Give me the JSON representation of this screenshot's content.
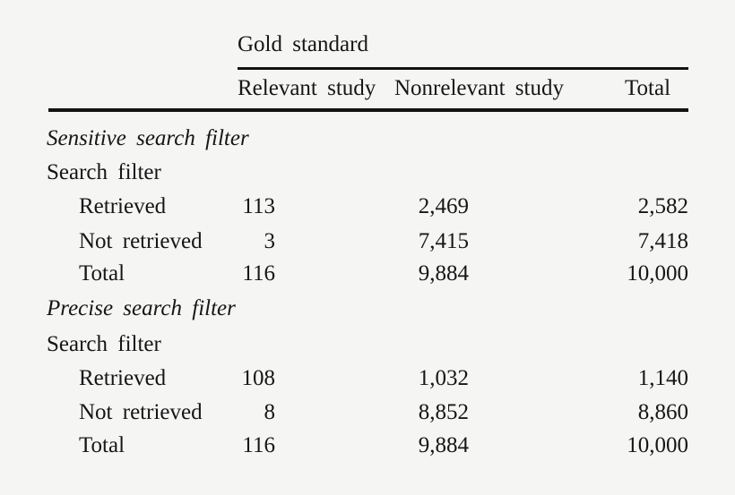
{
  "colors": {
    "background": "#f5f5f4",
    "text": "#161616",
    "rule": "#121212"
  },
  "table": {
    "spanner": "Gold standard",
    "columns": [
      "Relevant study",
      "Nonrelevant study",
      "Total"
    ],
    "sections": [
      {
        "title": "Sensitive search filter",
        "group_label": "Search filter",
        "rows": [
          {
            "label": "Retrieved",
            "relevant": "113",
            "nonrelevant": "2,469",
            "total": "2,582"
          },
          {
            "label": "Not retrieved",
            "relevant": "3",
            "nonrelevant": "7,415",
            "total": "7,418"
          },
          {
            "label": "Total",
            "relevant": "116",
            "nonrelevant": "9,884",
            "total": "10,000"
          }
        ]
      },
      {
        "title": "Precise search filter",
        "group_label": "Search filter",
        "rows": [
          {
            "label": "Retrieved",
            "relevant": "108",
            "nonrelevant": "1,032",
            "total": "1,140"
          },
          {
            "label": "Not retrieved",
            "relevant": "8",
            "nonrelevant": "8,852",
            "total": "8,860"
          },
          {
            "label": "Total",
            "relevant": "116",
            "nonrelevant": "9,884",
            "total": "10,000"
          }
        ]
      }
    ]
  }
}
